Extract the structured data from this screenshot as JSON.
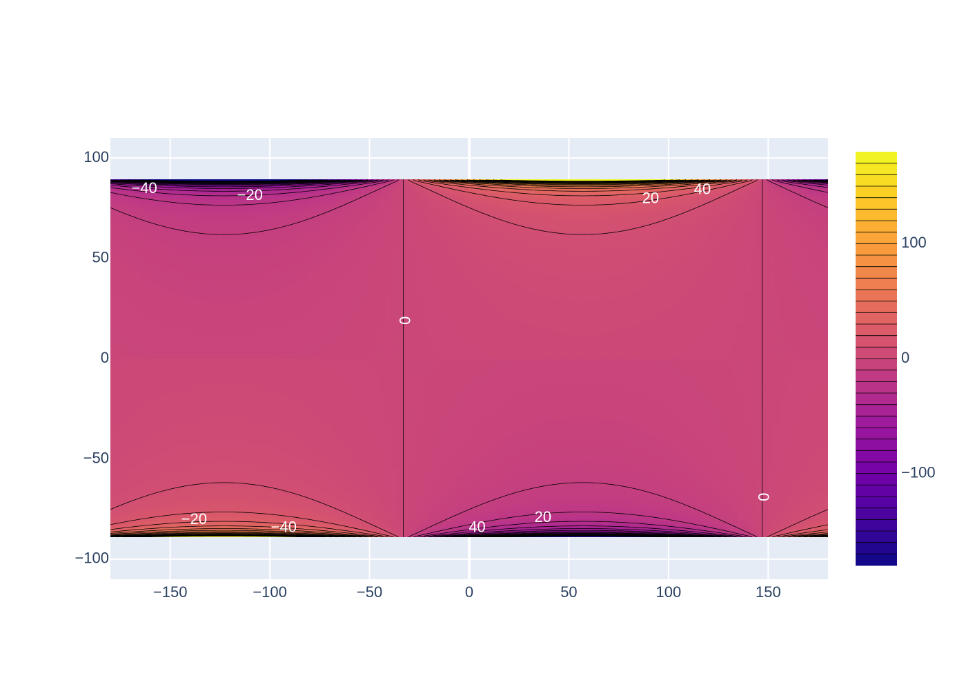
{
  "chart_data": {
    "type": "contour",
    "title": "",
    "xlabel": "",
    "ylabel": "",
    "xlim": [
      -180,
      180
    ],
    "ylim": [
      -110,
      110
    ],
    "data_x_range": [
      -180,
      180
    ],
    "data_y_range": [
      -90,
      90
    ],
    "x_ticks": [
      -150,
      -100,
      -50,
      0,
      50,
      100,
      150
    ],
    "y_ticks": [
      -100,
      -50,
      0,
      50,
      100
    ],
    "x_tick_labels": [
      "−150",
      "−100",
      "−50",
      "0",
      "50",
      "100",
      "150"
    ],
    "y_tick_labels": [
      "−100",
      "−50",
      "0",
      "50",
      "100"
    ],
    "grid": true,
    "colorscale": "Plasma",
    "colorscale_stops": [
      "#0d0887",
      "#46039f",
      "#7201a8",
      "#9c179e",
      "#bd3786",
      "#d8576b",
      "#ed7953",
      "#fb9f3a",
      "#fdca26",
      "#f0f921"
    ],
    "background_color": "#e5ecf6",
    "z_range": [
      -180,
      180
    ],
    "contour_start": -170,
    "contour_step": 10,
    "colorbar": {
      "ticks": [
        100,
        0,
        -100
      ],
      "tick_labels": [
        "100",
        "0",
        "−100"
      ]
    },
    "zero_lines_x": [
      -33,
      147
    ],
    "contour_labels": [
      {
        "text": "−40",
        "x": -163,
        "y": 84.5
      },
      {
        "text": "−20",
        "x": -110,
        "y": 81
      },
      {
        "text": "20",
        "x": 91,
        "y": 79.5
      },
      {
        "text": "40",
        "x": 117,
        "y": 84
      },
      {
        "text": "−20",
        "x": -138,
        "y": -80.5
      },
      {
        "text": "−40",
        "x": -93,
        "y": -84.5
      },
      {
        "text": "20",
        "x": 37,
        "y": -79.5
      },
      {
        "text": "40",
        "x": 4,
        "y": -84.5
      },
      {
        "text": "0",
        "x": -33,
        "y": 19,
        "rotate": 90
      },
      {
        "text": "0",
        "x": 147,
        "y": -69,
        "rotate": 90
      }
    ]
  }
}
